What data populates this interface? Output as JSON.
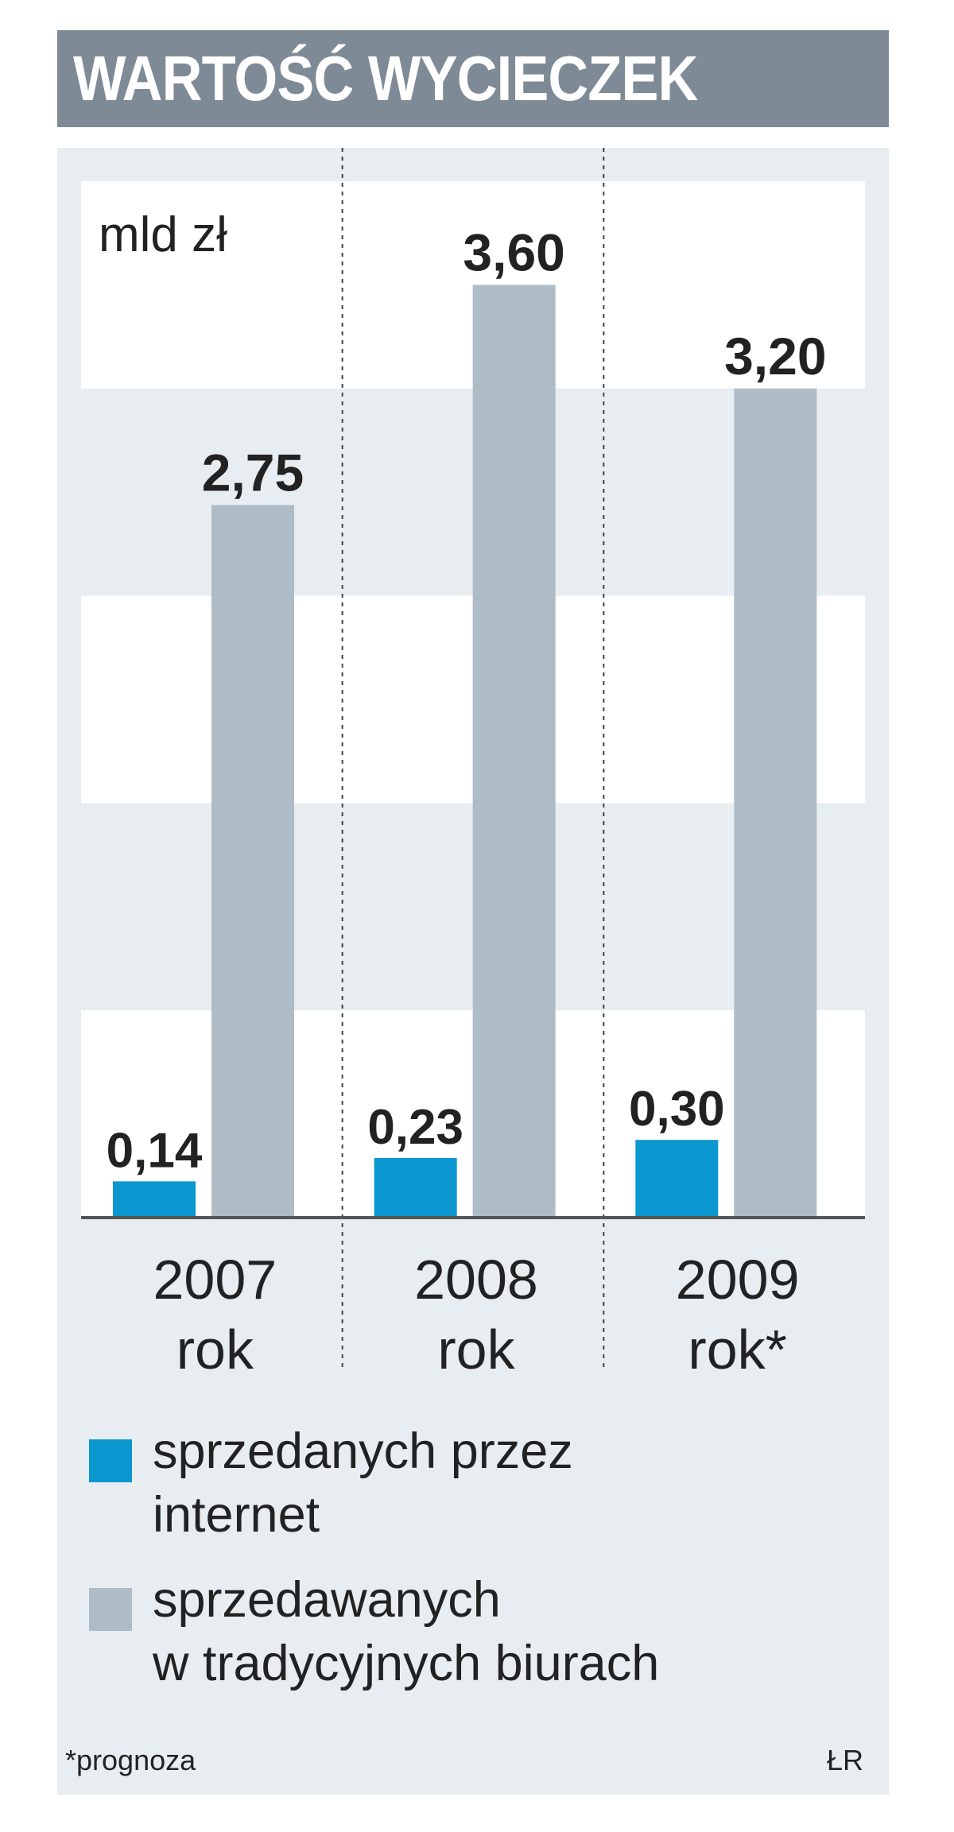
{
  "title": "WARTOŚĆ WYCIECZEK",
  "colors": {
    "internet": "#0b97cf",
    "traditional": "#aebcc7",
    "title_bg": "#7e8b97",
    "panel_bg": "#e8edf2",
    "band_white": "#ffffff"
  },
  "chart_data": {
    "type": "bar",
    "unit_label": "mld zł",
    "categories": [
      "2007\nrok",
      "2008\nrok",
      "2009\nrok*"
    ],
    "series": [
      {
        "name": "sprzedanych przez internet",
        "values": [
          0.14,
          0.23,
          0.3
        ],
        "labels": [
          "0,14",
          "0,23",
          "0,30"
        ]
      },
      {
        "name": "sprzedawanych w tradycyjnych biurach",
        "values": [
          2.75,
          3.6,
          3.2
        ],
        "labels": [
          "2,75",
          "3,60",
          "3,20"
        ]
      }
    ],
    "ylim": [
      0,
      4.0
    ],
    "grid": "horizontal bands"
  },
  "legend": [
    {
      "label": "sprzedanych przez\ninternet",
      "icon": "square-swatch"
    },
    {
      "label": "sprzedawanych\nw tradycyjnych biurach",
      "icon": "square-swatch"
    }
  ],
  "footnote": "*prognoza",
  "credit": "ŁR"
}
